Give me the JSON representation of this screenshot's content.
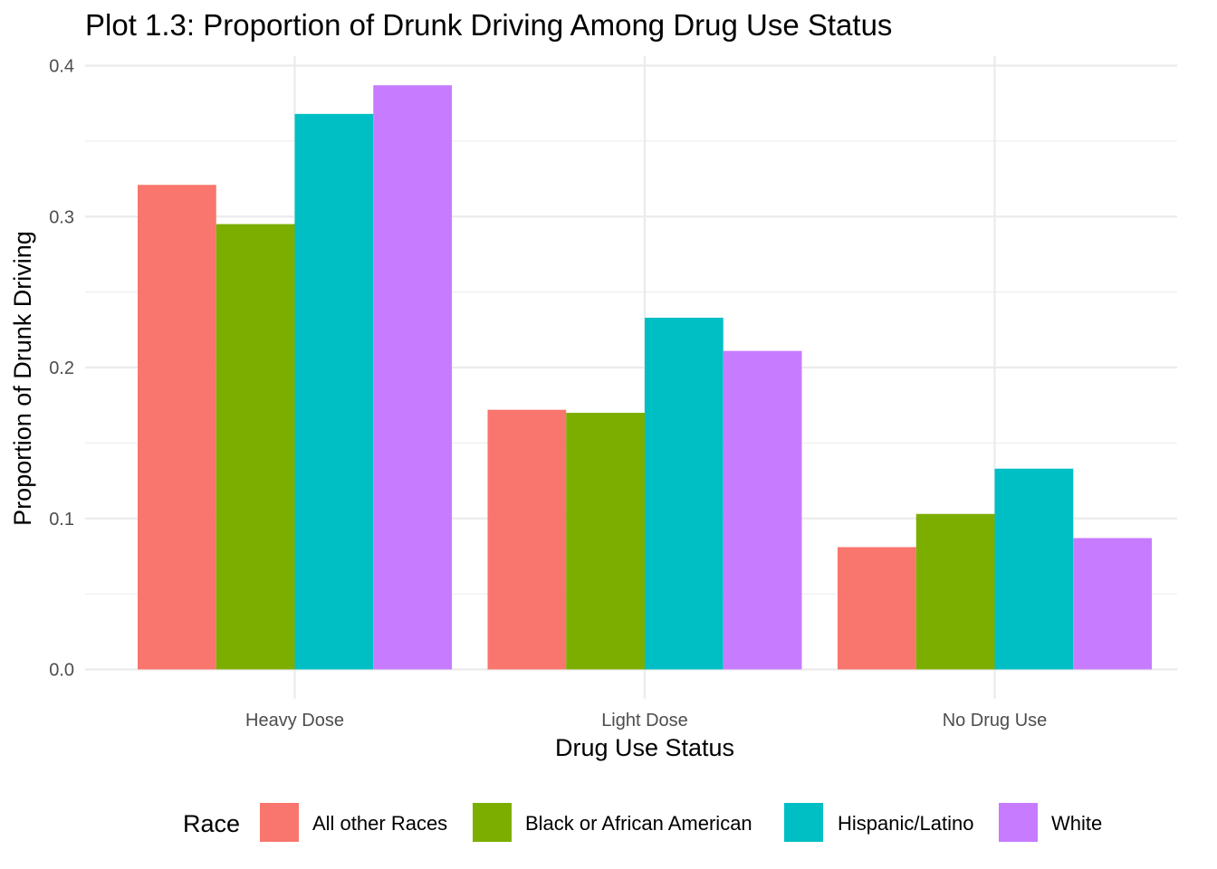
{
  "chart_data": {
    "type": "bar",
    "title": "Plot 1.3: Proportion of Drunk Driving Among Drug Use Status",
    "xlabel": "Drug Use Status",
    "ylabel": "Proportion of Drunk Driving",
    "categories": [
      "Heavy Dose",
      "Light Dose",
      "No Drug Use"
    ],
    "ylim": [
      0,
      0.4
    ],
    "yticks": [
      0.0,
      0.1,
      0.2,
      0.3,
      0.4
    ],
    "ytick_labels": [
      "0.0",
      "0.1",
      "0.2",
      "0.3",
      "0.4"
    ],
    "grid": true,
    "legend": {
      "title": "Race",
      "position": "bottom"
    },
    "series": [
      {
        "name": "All other Races",
        "color": "#F8766D",
        "values": [
          0.321,
          0.172,
          0.081
        ]
      },
      {
        "name": "Black or African American",
        "color": "#7CAE00",
        "values": [
          0.295,
          0.17,
          0.103
        ]
      },
      {
        "name": "Hispanic/Latino",
        "color": "#00BFC4",
        "values": [
          0.368,
          0.233,
          0.133
        ]
      },
      {
        "name": "White",
        "color": "#C77CFF",
        "values": [
          0.387,
          0.211,
          0.087
        ]
      }
    ]
  }
}
